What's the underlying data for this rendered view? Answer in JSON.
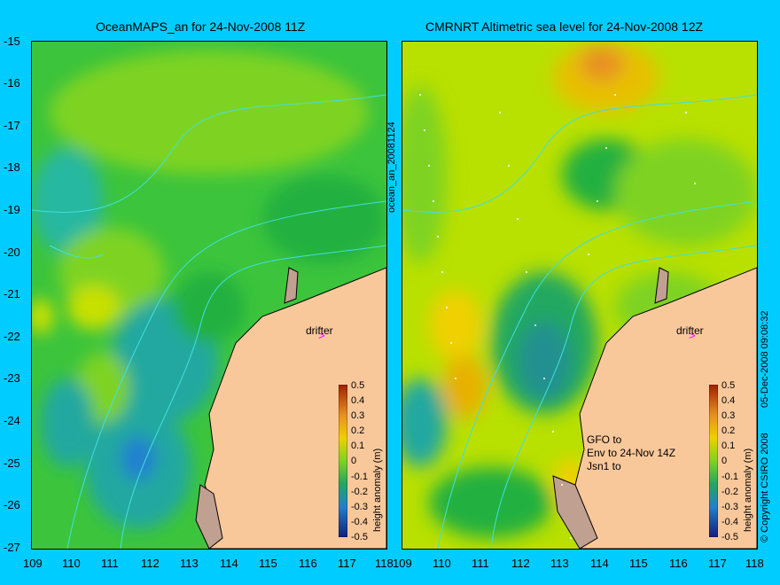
{
  "titles": {
    "left": "OceanMAPS_an for 24-Nov-2008 11Z",
    "right": "CMRNRT Altimetric sea level  for 24-Nov-2008 12Z"
  },
  "side_labels": {
    "middle": "ocean_an_20081124",
    "right_copyright": "© Copyright CSIRO 2008",
    "right_date": "05-Dec-2008 09:08:32"
  },
  "y_ticks": [
    "-15",
    "-16",
    "-17",
    "-18",
    "-19",
    "-20",
    "-21",
    "-22",
    "-23",
    "-24",
    "-25",
    "-26",
    "-27"
  ],
  "x_ticks": [
    "109",
    "110",
    "111",
    "112",
    "113",
    "114",
    "115",
    "116",
    "117",
    "118"
  ],
  "colorbar": {
    "label": "height anomaly (m)",
    "ticks": [
      "0.5",
      "0.4",
      "0.3",
      "0.2",
      "0.1",
      "0",
      "-0.1",
      "-0.2",
      "-0.3",
      "-0.4",
      "-0.5"
    ]
  },
  "drifter_label": "drifter",
  "satellite_legend": [
    "GFO to",
    "Env to 24-Nov 14Z",
    "Jsn1 to"
  ],
  "colors": {
    "background": "#00ccff",
    "land": "#f9c89a",
    "shelf_land": "#c0a090",
    "contour": "#40e0e0",
    "drifter_marker": "#ff00ff"
  }
}
